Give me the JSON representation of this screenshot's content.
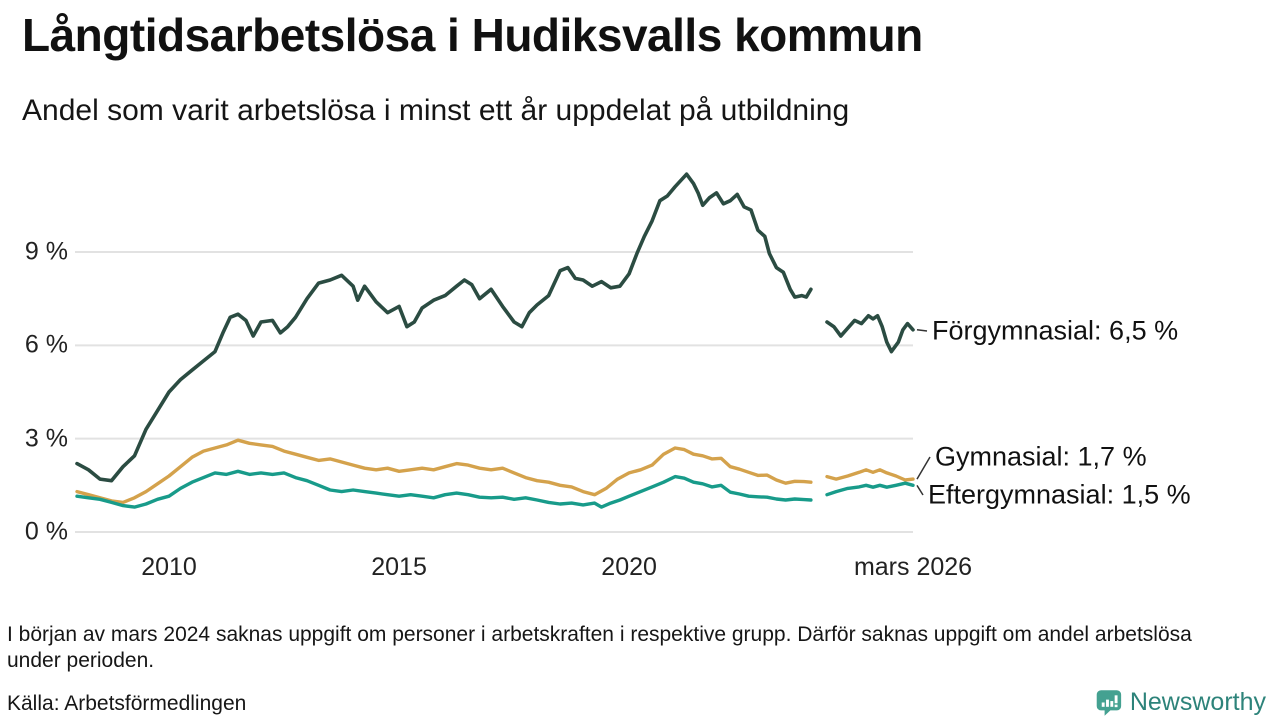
{
  "header": {
    "title": "Långtidsarbetslösa i Hudiksvalls kommun",
    "subtitle": "Andel som varit arbetslösa i minst ett år uppdelat på utbildning"
  },
  "chart_data": {
    "type": "line",
    "title": "Långtidsarbetslösa i Hudiksvalls kommun",
    "subtitle": "Andel som varit arbetslösa i minst ett år uppdelat på utbildning",
    "grid": true,
    "gridline_color": "#e2e2e2",
    "x_axis": {
      "min": 2008.0,
      "max": 2026.17,
      "ticks": [
        {
          "label": "2010",
          "value": 2010
        },
        {
          "label": "2015",
          "value": 2015
        },
        {
          "label": "2020",
          "value": 2020
        },
        {
          "label": "mars 2026",
          "value": 2026.17
        }
      ]
    },
    "y_axis": {
      "min": 0,
      "max": 12,
      "ticks": [
        {
          "label": "0 %",
          "value": 0
        },
        {
          "label": "3 %",
          "value": 3
        },
        {
          "label": "6 %",
          "value": 6
        },
        {
          "label": "9 %",
          "value": 9
        }
      ]
    },
    "data_gap": {
      "from": 2024.0,
      "to": 2024.25,
      "reason": "uppgift saknas i början av mars 2024"
    },
    "series": [
      {
        "name": "Förgymnasial",
        "end_label": "Förgymnasial: 6,5 %",
        "end_value": "6,5 %",
        "color": "#2b4c42",
        "points": [
          [
            2008,
            2.2
          ],
          [
            2008.25,
            2.0
          ],
          [
            2008.5,
            1.7
          ],
          [
            2008.75,
            1.65
          ],
          [
            2009,
            2.1
          ],
          [
            2009.25,
            2.45
          ],
          [
            2009.5,
            3.3
          ],
          [
            2009.75,
            3.9
          ],
          [
            2010,
            4.5
          ],
          [
            2010.25,
            4.9
          ],
          [
            2010.5,
            5.2
          ],
          [
            2010.75,
            5.5
          ],
          [
            2011,
            5.8
          ],
          [
            2011.17,
            6.4
          ],
          [
            2011.33,
            6.9
          ],
          [
            2011.5,
            7.0
          ],
          [
            2011.67,
            6.8
          ],
          [
            2011.83,
            6.3
          ],
          [
            2012,
            6.75
          ],
          [
            2012.25,
            6.8
          ],
          [
            2012.42,
            6.4
          ],
          [
            2012.58,
            6.6
          ],
          [
            2012.75,
            6.9
          ],
          [
            2013,
            7.5
          ],
          [
            2013.25,
            8.0
          ],
          [
            2013.5,
            8.1
          ],
          [
            2013.75,
            8.25
          ],
          [
            2014,
            7.9
          ],
          [
            2014.1,
            7.45
          ],
          [
            2014.25,
            7.9
          ],
          [
            2014.5,
            7.4
          ],
          [
            2014.75,
            7.05
          ],
          [
            2015,
            7.25
          ],
          [
            2015.17,
            6.6
          ],
          [
            2015.33,
            6.75
          ],
          [
            2015.5,
            7.2
          ],
          [
            2015.75,
            7.45
          ],
          [
            2016,
            7.6
          ],
          [
            2016.25,
            7.9
          ],
          [
            2016.42,
            8.1
          ],
          [
            2016.58,
            7.95
          ],
          [
            2016.75,
            7.5
          ],
          [
            2017,
            7.8
          ],
          [
            2017.25,
            7.25
          ],
          [
            2017.5,
            6.75
          ],
          [
            2017.67,
            6.6
          ],
          [
            2017.83,
            7.05
          ],
          [
            2018,
            7.3
          ],
          [
            2018.25,
            7.6
          ],
          [
            2018.5,
            8.4
          ],
          [
            2018.67,
            8.5
          ],
          [
            2018.83,
            8.15
          ],
          [
            2019,
            8.1
          ],
          [
            2019.2,
            7.9
          ],
          [
            2019.4,
            8.05
          ],
          [
            2019.6,
            7.85
          ],
          [
            2019.8,
            7.9
          ],
          [
            2020,
            8.3
          ],
          [
            2020.17,
            8.95
          ],
          [
            2020.33,
            9.5
          ],
          [
            2020.5,
            10.0
          ],
          [
            2020.67,
            10.65
          ],
          [
            2020.83,
            10.8
          ],
          [
            2021,
            11.1
          ],
          [
            2021.25,
            11.5
          ],
          [
            2021.4,
            11.2
          ],
          [
            2021.5,
            10.9
          ],
          [
            2021.6,
            10.5
          ],
          [
            2021.75,
            10.75
          ],
          [
            2021.9,
            10.9
          ],
          [
            2022.05,
            10.55
          ],
          [
            2022.2,
            10.65
          ],
          [
            2022.35,
            10.85
          ],
          [
            2022.5,
            10.45
          ],
          [
            2022.65,
            10.35
          ],
          [
            2022.8,
            9.7
          ],
          [
            2022.95,
            9.5
          ],
          [
            2023.05,
            8.95
          ],
          [
            2023.2,
            8.5
          ],
          [
            2023.35,
            8.35
          ],
          [
            2023.5,
            7.8
          ],
          [
            2023.6,
            7.55
          ],
          [
            2023.75,
            7.6
          ],
          [
            2023.85,
            7.55
          ],
          [
            2023.95,
            7.8
          ],
          [
            2024.1,
            null
          ],
          [
            2024.3,
            6.75
          ],
          [
            2024.45,
            6.6
          ],
          [
            2024.6,
            6.3
          ],
          [
            2024.75,
            6.55
          ],
          [
            2024.9,
            6.8
          ],
          [
            2025.05,
            6.7
          ],
          [
            2025.2,
            6.95
          ],
          [
            2025.3,
            6.85
          ],
          [
            2025.4,
            6.95
          ],
          [
            2025.5,
            6.6
          ],
          [
            2025.6,
            6.1
          ],
          [
            2025.7,
            5.8
          ],
          [
            2025.85,
            6.1
          ],
          [
            2025.95,
            6.5
          ],
          [
            2026.05,
            6.7
          ],
          [
            2026.17,
            6.5
          ]
        ]
      },
      {
        "name": "Gymnasial",
        "end_label": "Gymnasial: 1,7 %",
        "end_value": "1,7 %",
        "color": "#d4a24c",
        "points": [
          [
            2008,
            1.3
          ],
          [
            2008.25,
            1.2
          ],
          [
            2008.5,
            1.1
          ],
          [
            2008.75,
            1.0
          ],
          [
            2009,
            0.95
          ],
          [
            2009.25,
            1.1
          ],
          [
            2009.5,
            1.3
          ],
          [
            2009.75,
            1.55
          ],
          [
            2010,
            1.8
          ],
          [
            2010.25,
            2.1
          ],
          [
            2010.5,
            2.4
          ],
          [
            2010.75,
            2.6
          ],
          [
            2011,
            2.7
          ],
          [
            2011.25,
            2.8
          ],
          [
            2011.5,
            2.95
          ],
          [
            2011.75,
            2.85
          ],
          [
            2012,
            2.8
          ],
          [
            2012.25,
            2.75
          ],
          [
            2012.5,
            2.6
          ],
          [
            2012.75,
            2.5
          ],
          [
            2013,
            2.4
          ],
          [
            2013.25,
            2.3
          ],
          [
            2013.5,
            2.35
          ],
          [
            2013.75,
            2.25
          ],
          [
            2014,
            2.15
          ],
          [
            2014.25,
            2.05
          ],
          [
            2014.5,
            2.0
          ],
          [
            2014.75,
            2.05
          ],
          [
            2015,
            1.95
          ],
          [
            2015.25,
            2.0
          ],
          [
            2015.5,
            2.05
          ],
          [
            2015.75,
            2.0
          ],
          [
            2016,
            2.1
          ],
          [
            2016.25,
            2.2
          ],
          [
            2016.5,
            2.15
          ],
          [
            2016.75,
            2.05
          ],
          [
            2017,
            2.0
          ],
          [
            2017.25,
            2.05
          ],
          [
            2017.5,
            1.9
          ],
          [
            2017.75,
            1.75
          ],
          [
            2018,
            1.65
          ],
          [
            2018.25,
            1.6
          ],
          [
            2018.5,
            1.5
          ],
          [
            2018.75,
            1.45
          ],
          [
            2019,
            1.3
          ],
          [
            2019.25,
            1.2
          ],
          [
            2019.5,
            1.4
          ],
          [
            2019.75,
            1.7
          ],
          [
            2020,
            1.9
          ],
          [
            2020.25,
            2.0
          ],
          [
            2020.5,
            2.15
          ],
          [
            2020.75,
            2.5
          ],
          [
            2021,
            2.7
          ],
          [
            2021.2,
            2.65
          ],
          [
            2021.4,
            2.5
          ],
          [
            2021.6,
            2.45
          ],
          [
            2021.8,
            2.35
          ],
          [
            2022,
            2.37
          ],
          [
            2022.2,
            2.1
          ],
          [
            2022.4,
            2.02
          ],
          [
            2022.6,
            1.92
          ],
          [
            2022.8,
            1.82
          ],
          [
            2023,
            1.83
          ],
          [
            2023.2,
            1.67
          ],
          [
            2023.4,
            1.57
          ],
          [
            2023.6,
            1.63
          ],
          [
            2023.8,
            1.62
          ],
          [
            2023.95,
            1.6
          ],
          [
            2024.1,
            null
          ],
          [
            2024.3,
            1.78
          ],
          [
            2024.5,
            1.7
          ],
          [
            2024.75,
            1.8
          ],
          [
            2025,
            1.92
          ],
          [
            2025.15,
            2.0
          ],
          [
            2025.3,
            1.92
          ],
          [
            2025.45,
            2.0
          ],
          [
            2025.6,
            1.9
          ],
          [
            2025.8,
            1.8
          ],
          [
            2026,
            1.67
          ],
          [
            2026.17,
            1.7
          ]
        ]
      },
      {
        "name": "Eftergymnasial",
        "end_label": "Eftergymnasial: 1,5 %",
        "end_value": "1,5 %",
        "color": "#189b8a",
        "points": [
          [
            2008,
            1.15
          ],
          [
            2008.25,
            1.1
          ],
          [
            2008.5,
            1.05
          ],
          [
            2008.75,
            0.95
          ],
          [
            2009,
            0.85
          ],
          [
            2009.25,
            0.8
          ],
          [
            2009.5,
            0.9
          ],
          [
            2009.75,
            1.05
          ],
          [
            2010,
            1.15
          ],
          [
            2010.25,
            1.4
          ],
          [
            2010.5,
            1.6
          ],
          [
            2010.75,
            1.75
          ],
          [
            2011,
            1.9
          ],
          [
            2011.25,
            1.85
          ],
          [
            2011.5,
            1.95
          ],
          [
            2011.75,
            1.85
          ],
          [
            2012,
            1.9
          ],
          [
            2012.25,
            1.85
          ],
          [
            2012.5,
            1.9
          ],
          [
            2012.75,
            1.75
          ],
          [
            2013,
            1.65
          ],
          [
            2013.25,
            1.5
          ],
          [
            2013.5,
            1.35
          ],
          [
            2013.75,
            1.3
          ],
          [
            2014,
            1.35
          ],
          [
            2014.25,
            1.3
          ],
          [
            2014.5,
            1.25
          ],
          [
            2014.75,
            1.2
          ],
          [
            2015,
            1.15
          ],
          [
            2015.25,
            1.2
          ],
          [
            2015.5,
            1.15
          ],
          [
            2015.75,
            1.1
          ],
          [
            2016,
            1.2
          ],
          [
            2016.25,
            1.25
          ],
          [
            2016.5,
            1.2
          ],
          [
            2016.75,
            1.12
          ],
          [
            2017,
            1.1
          ],
          [
            2017.25,
            1.12
          ],
          [
            2017.5,
            1.05
          ],
          [
            2017.75,
            1.1
          ],
          [
            2018,
            1.03
          ],
          [
            2018.25,
            0.95
          ],
          [
            2018.5,
            0.9
          ],
          [
            2018.75,
            0.93
          ],
          [
            2019,
            0.87
          ],
          [
            2019.25,
            0.93
          ],
          [
            2019.4,
            0.8
          ],
          [
            2019.6,
            0.93
          ],
          [
            2019.8,
            1.03
          ],
          [
            2020,
            1.15
          ],
          [
            2020.25,
            1.3
          ],
          [
            2020.5,
            1.45
          ],
          [
            2020.75,
            1.6
          ],
          [
            2021,
            1.78
          ],
          [
            2021.2,
            1.73
          ],
          [
            2021.4,
            1.6
          ],
          [
            2021.6,
            1.55
          ],
          [
            2021.8,
            1.45
          ],
          [
            2022,
            1.5
          ],
          [
            2022.2,
            1.28
          ],
          [
            2022.4,
            1.22
          ],
          [
            2022.6,
            1.15
          ],
          [
            2022.8,
            1.13
          ],
          [
            2023,
            1.12
          ],
          [
            2023.2,
            1.06
          ],
          [
            2023.4,
            1.03
          ],
          [
            2023.6,
            1.06
          ],
          [
            2023.8,
            1.04
          ],
          [
            2023.95,
            1.03
          ],
          [
            2024.1,
            null
          ],
          [
            2024.3,
            1.2
          ],
          [
            2024.5,
            1.3
          ],
          [
            2024.75,
            1.4
          ],
          [
            2025,
            1.45
          ],
          [
            2025.15,
            1.5
          ],
          [
            2025.3,
            1.44
          ],
          [
            2025.45,
            1.5
          ],
          [
            2025.6,
            1.44
          ],
          [
            2025.8,
            1.5
          ],
          [
            2026,
            1.57
          ],
          [
            2026.17,
            1.5
          ]
        ]
      }
    ]
  },
  "note": "I början av mars 2024 saknas uppgift om personer i arbetskraften i respektive grupp. Därför saknas uppgift om andel arbetslösa under perioden.",
  "source": "Källa: Arbetsförmedlingen",
  "logo": {
    "text": "Newsworthy",
    "icon_color": "#44a191",
    "text_color": "#2d837a"
  }
}
